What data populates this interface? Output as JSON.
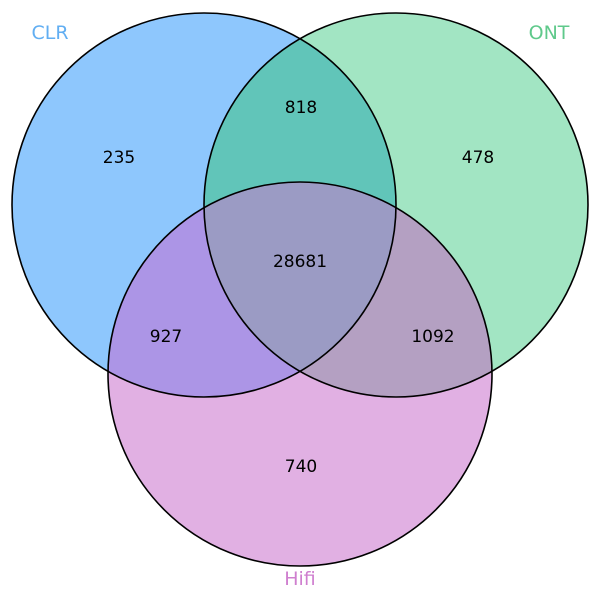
{
  "sets": [
    {
      "key": "clr",
      "label": "CLR",
      "color": "#3f9dfa",
      "label_color": "#61aef2"
    },
    {
      "key": "ont",
      "label": "ONT",
      "color": "#5fd08e",
      "label_color": "#5fc98b"
    },
    {
      "key": "hifi",
      "label": "Hifi",
      "color": "#cf78cf",
      "label_color": "#cf7fcf"
    }
  ],
  "regions": {
    "clr_only": "235",
    "ont_only": "478",
    "hifi_only": "740",
    "clr_ont": "818",
    "clr_hifi": "927",
    "ont_hifi": "1092",
    "all": "28681"
  },
  "colors": {
    "clr_fill": "#8ec7fd",
    "ont_fill": "#a2e5c3",
    "hifi_fill": "#e1b0e3",
    "clr_ont_fill": "#61c5b9",
    "clr_hifi_fill": "#ac95e6",
    "ont_hifi_fill": "#b4a0c2",
    "all_fill": "#9b9bc4",
    "outline": "#000000"
  }
}
